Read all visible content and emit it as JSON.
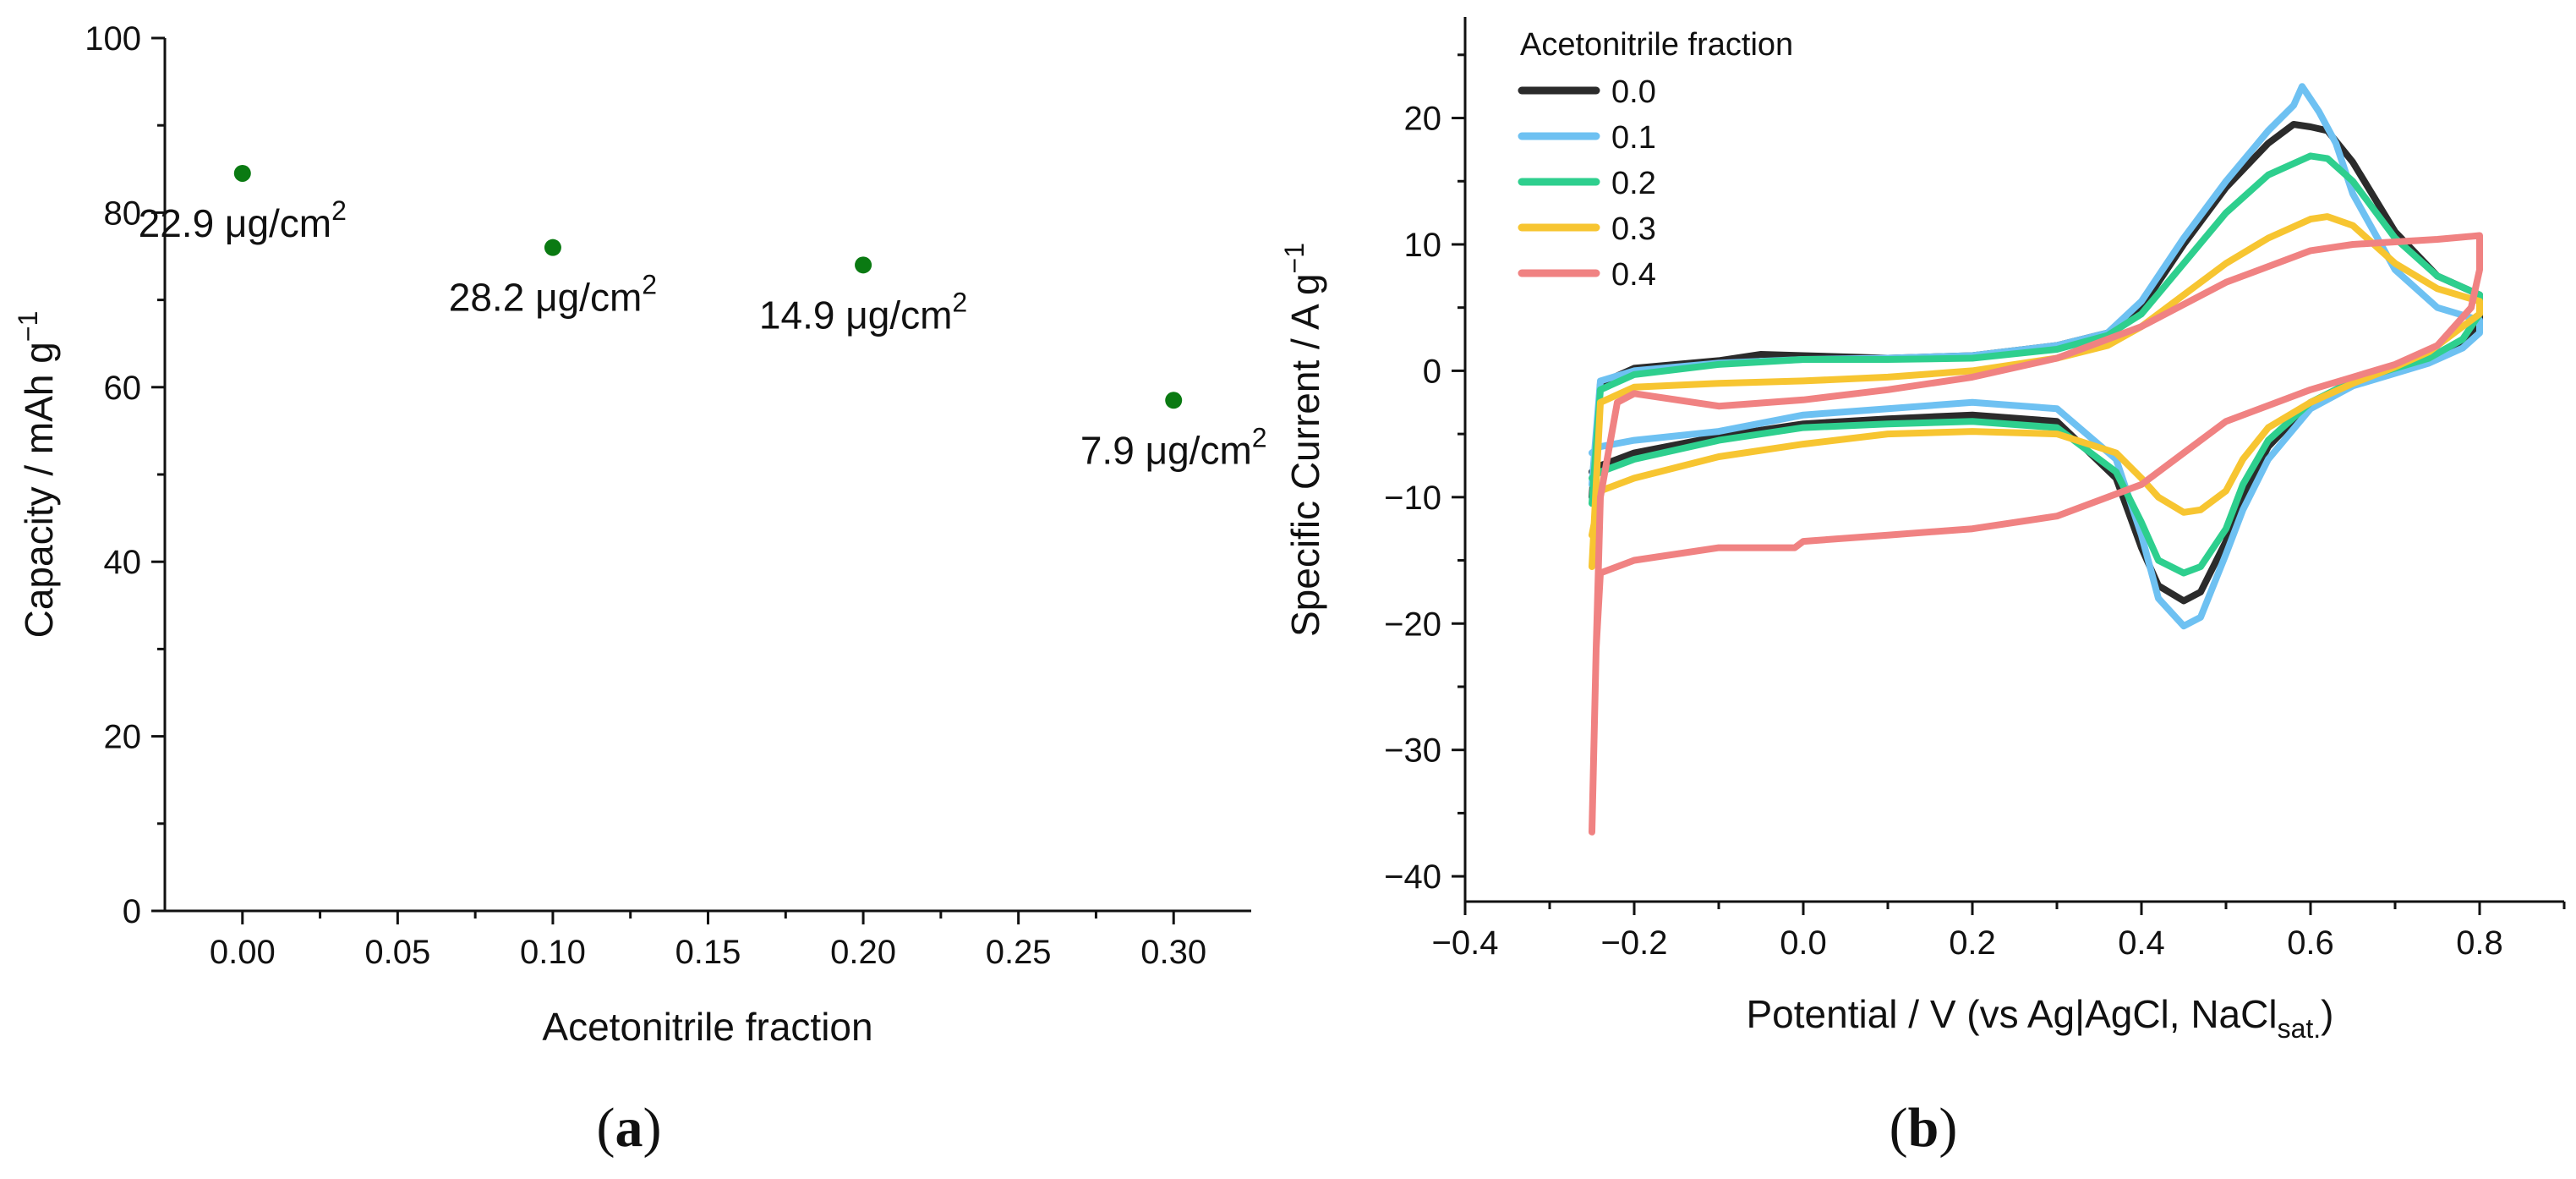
{
  "chart_data": [
    {
      "panel_label": "a",
      "type": "scatter",
      "title": "",
      "xlabel": "Acetonitrile fraction",
      "ylabel": {
        "base": "Capacity / mAh g",
        "sup": "−1"
      },
      "xlim": [
        -0.025,
        0.325
      ],
      "ylim": [
        0,
        100
      ],
      "xticks": [
        0.0,
        0.05,
        0.1,
        0.15,
        0.2,
        0.25,
        0.3
      ],
      "xtick_labels": [
        "0.00",
        "0.05",
        "0.10",
        "0.15",
        "0.20",
        "0.25",
        "0.30"
      ],
      "yticks": [
        0,
        20,
        40,
        60,
        80,
        100
      ],
      "ytick_labels": [
        "0",
        "20",
        "40",
        "60",
        "80",
        "100"
      ],
      "marker_color": "#0a7a12",
      "points": [
        {
          "x": 0.0,
          "y": 84.5,
          "label": "22.9 μg/cm",
          "label_sup": "2"
        },
        {
          "x": 0.1,
          "y": 76.0,
          "label": "28.2 μg/cm",
          "label_sup": "2"
        },
        {
          "x": 0.2,
          "y": 74.0,
          "label": "14.9 μg/cm",
          "label_sup": "2"
        },
        {
          "x": 0.3,
          "y": 58.5,
          "label": "7.9 μg/cm",
          "label_sup": "2"
        }
      ]
    },
    {
      "panel_label": "b",
      "type": "line",
      "title": "",
      "xlabel": {
        "base": "Potential / V (vs Ag|AgCl, NaCl",
        "sub": "sat.",
        "end": ")"
      },
      "ylabel": {
        "base": "Specific Current / A g",
        "sup": "−1"
      },
      "xlim": [
        -0.4,
        0.9
      ],
      "ylim": [
        -42,
        28
      ],
      "xticks": [
        -0.4,
        -0.2,
        0.0,
        0.2,
        0.4,
        0.6,
        0.8
      ],
      "xtick_labels": [
        "−0.4",
        "−0.2",
        "0.0",
        "0.2",
        "0.4",
        "0.6",
        "0.8"
      ],
      "yticks": [
        -40,
        -30,
        -20,
        -10,
        0,
        10,
        20
      ],
      "ytick_labels": [
        "−40",
        "−30",
        "−20",
        "−10",
        "0",
        "10",
        "20"
      ],
      "legend": {
        "title": "Acetonitrile fraction",
        "position": "top-left"
      },
      "series": [
        {
          "name": "0.0",
          "color": "#2b2b2b",
          "x": [
            -0.25,
            -0.24,
            -0.2,
            -0.1,
            -0.05,
            0.0,
            0.1,
            0.2,
            0.3,
            0.36,
            0.4,
            0.45,
            0.5,
            0.55,
            0.58,
            0.6,
            0.62,
            0.65,
            0.7,
            0.75,
            0.8,
            0.8,
            0.78,
            0.74,
            0.7,
            0.65,
            0.6,
            0.55,
            0.52,
            0.5,
            0.47,
            0.45,
            0.42,
            0.4,
            0.37,
            0.3,
            0.2,
            0.1,
            0.0,
            -0.1,
            -0.2,
            -0.24,
            -0.25
          ],
          "y": [
            -10,
            -1,
            0.2,
            0.8,
            1.3,
            1.2,
            1.0,
            1.2,
            2.0,
            3.0,
            5.0,
            10.0,
            14.5,
            18.0,
            19.5,
            19.3,
            19.0,
            16.5,
            11.0,
            7.5,
            6.0,
            4.0,
            2.0,
            0.8,
            0.0,
            -1.0,
            -2.5,
            -6.0,
            -10.0,
            -13.5,
            -17.5,
            -18.2,
            -17.0,
            -14.0,
            -8.5,
            -4.0,
            -3.5,
            -3.8,
            -4.2,
            -5.2,
            -6.5,
            -7.5,
            -8.0
          ]
        },
        {
          "name": "0.1",
          "color": "#6ec1f2",
          "x": [
            -0.25,
            -0.24,
            -0.2,
            -0.1,
            0.0,
            0.1,
            0.2,
            0.3,
            0.36,
            0.4,
            0.45,
            0.5,
            0.55,
            0.58,
            0.59,
            0.6,
            0.61,
            0.63,
            0.65,
            0.7,
            0.75,
            0.8,
            0.8,
            0.78,
            0.74,
            0.7,
            0.65,
            0.6,
            0.55,
            0.52,
            0.5,
            0.47,
            0.45,
            0.42,
            0.4,
            0.37,
            0.3,
            0.2,
            0.1,
            0.0,
            -0.1,
            -0.2,
            -0.24,
            -0.25
          ],
          "y": [
            -9,
            -0.8,
            0.0,
            0.6,
            0.9,
            1.0,
            1.2,
            2.0,
            3.0,
            5.5,
            10.5,
            15.0,
            19.0,
            21.0,
            22.5,
            21.5,
            20.5,
            18.0,
            14.0,
            8.0,
            5.0,
            4.0,
            3.0,
            1.8,
            0.6,
            -0.2,
            -1.2,
            -3.0,
            -7.0,
            -11.0,
            -14.5,
            -19.5,
            -20.2,
            -18.0,
            -13.0,
            -7.0,
            -3.0,
            -2.5,
            -3.0,
            -3.5,
            -4.8,
            -5.5,
            -6.0,
            -6.5
          ]
        },
        {
          "name": "0.2",
          "color": "#2ecf8e",
          "x": [
            -0.25,
            -0.24,
            -0.2,
            -0.1,
            0.0,
            0.1,
            0.2,
            0.3,
            0.36,
            0.4,
            0.45,
            0.5,
            0.55,
            0.6,
            0.62,
            0.65,
            0.7,
            0.75,
            0.8,
            0.8,
            0.78,
            0.74,
            0.7,
            0.65,
            0.6,
            0.55,
            0.52,
            0.5,
            0.47,
            0.45,
            0.42,
            0.4,
            0.37,
            0.3,
            0.2,
            0.1,
            0.0,
            -0.1,
            -0.2,
            -0.24,
            -0.25
          ],
          "y": [
            -10.5,
            -1.5,
            -0.3,
            0.5,
            0.9,
            0.9,
            1.0,
            1.7,
            2.8,
            4.5,
            8.5,
            12.5,
            15.5,
            17.0,
            16.8,
            15.0,
            10.5,
            7.5,
            6.0,
            4.5,
            2.5,
            1.0,
            0.2,
            -0.8,
            -2.5,
            -5.5,
            -9.0,
            -12.5,
            -15.5,
            -16.0,
            -15.0,
            -12.0,
            -8.0,
            -4.5,
            -4.0,
            -4.2,
            -4.5,
            -5.5,
            -7.0,
            -8.0,
            -8.5
          ]
        },
        {
          "name": "0.3",
          "color": "#f7c531",
          "x": [
            -0.25,
            -0.24,
            -0.2,
            -0.1,
            0.0,
            0.1,
            0.2,
            0.3,
            0.36,
            0.4,
            0.45,
            0.5,
            0.55,
            0.6,
            0.62,
            0.65,
            0.7,
            0.75,
            0.8,
            0.8,
            0.78,
            0.74,
            0.7,
            0.65,
            0.6,
            0.55,
            0.52,
            0.5,
            0.47,
            0.45,
            0.42,
            0.4,
            0.37,
            0.3,
            0.2,
            0.1,
            0.0,
            -0.1,
            -0.2,
            -0.24,
            -0.25
          ],
          "y": [
            -15.5,
            -2.5,
            -1.3,
            -1.0,
            -0.8,
            -0.5,
            0.0,
            1.0,
            2.0,
            3.5,
            6.0,
            8.5,
            10.5,
            12.0,
            12.2,
            11.5,
            8.5,
            6.5,
            5.5,
            4.5,
            3.5,
            1.5,
            0.3,
            -1.0,
            -2.5,
            -4.5,
            -7.0,
            -9.5,
            -11.0,
            -11.2,
            -10.0,
            -8.5,
            -6.5,
            -5.0,
            -4.8,
            -5.0,
            -5.8,
            -6.8,
            -8.5,
            -9.5,
            -13.0
          ]
        },
        {
          "name": "0.4",
          "color": "#f08282",
          "x": [
            -0.25,
            -0.245,
            -0.24,
            -0.22,
            -0.2,
            -0.1,
            0.0,
            0.1,
            0.2,
            0.3,
            0.4,
            0.5,
            0.6,
            0.65,
            0.7,
            0.75,
            0.8,
            0.8,
            0.79,
            0.75,
            0.7,
            0.65,
            0.6,
            0.5,
            0.45,
            0.4,
            0.3,
            0.2,
            0.1,
            0.0,
            -0.01,
            -0.1,
            -0.2,
            -0.24,
            -0.245,
            -0.25
          ],
          "y": [
            -36.5,
            -22.0,
            -10.0,
            -2.5,
            -1.8,
            -2.8,
            -2.3,
            -1.5,
            -0.5,
            1.0,
            3.5,
            7.0,
            9.5,
            10.0,
            10.2,
            10.4,
            10.7,
            8.0,
            5.0,
            2.0,
            0.5,
            -0.5,
            -1.5,
            -4.0,
            -6.5,
            -9.0,
            -11.5,
            -12.5,
            -13.0,
            -13.5,
            -14.0,
            -14.0,
            -15.0,
            -16.0,
            -22.0,
            -36.5
          ]
        }
      ]
    }
  ]
}
